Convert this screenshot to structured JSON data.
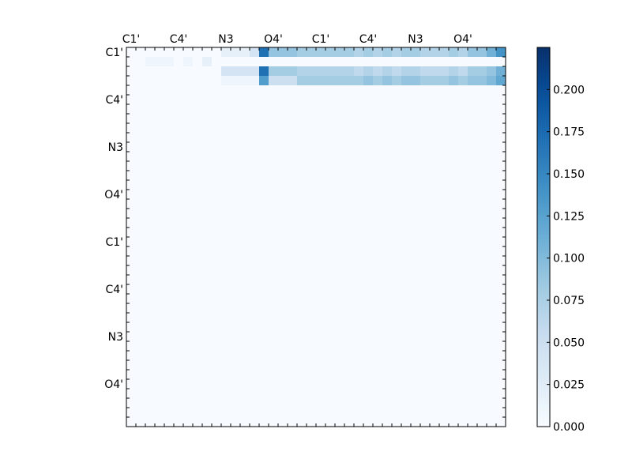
{
  "chart_data": {
    "type": "heatmap",
    "title": "",
    "xlabel": "",
    "ylabel": "",
    "n": 40,
    "tick_labels": [
      "C1'",
      "C4'",
      "N3",
      "O4'",
      "C1'",
      "C4'",
      "N3",
      "O4'"
    ],
    "tick_every": 5,
    "tick_first_index": 0,
    "ytick_label_offset": 0.5,
    "xaxis_labels_position": "top",
    "colorbar": {
      "colormap": "Blues",
      "range": [
        0.0,
        0.225
      ],
      "tick_values": [
        0.0,
        0.025,
        0.05,
        0.075,
        0.1,
        0.125,
        0.15,
        0.175,
        0.2
      ],
      "tick_labels": [
        "0.000",
        "0.025",
        "0.050",
        "0.075",
        "0.100",
        "0.125",
        "0.150",
        "0.175",
        "0.200"
      ],
      "placement": "right"
    },
    "values": [
      [
        0,
        0,
        0,
        0,
        0,
        0,
        0,
        0,
        0,
        0,
        0.02,
        0.02,
        0.02,
        0.04,
        0.17,
        0.09,
        0.09,
        0.09,
        0.08,
        0.08,
        0.08,
        0.08,
        0.08,
        0.08,
        0.07,
        0.08,
        0.07,
        0.08,
        0.07,
        0.08,
        0.08,
        0.07,
        0.07,
        0.07,
        0.08,
        0.07,
        0.09,
        0.09,
        0.11,
        0.14
      ],
      [
        0,
        0,
        0.01,
        0.01,
        0.01,
        0,
        0.01,
        0,
        0.02,
        0,
        0,
        0,
        0,
        0,
        0,
        0,
        0,
        0,
        0,
        0,
        0,
        0,
        0,
        0,
        0,
        0,
        0,
        0,
        0,
        0,
        0,
        0,
        0,
        0,
        0,
        0,
        0,
        0,
        0,
        0
      ],
      [
        0,
        0,
        0,
        0,
        0,
        0,
        0,
        0,
        0,
        0,
        0.04,
        0.04,
        0.04,
        0.04,
        0.17,
        0.08,
        0.08,
        0.08,
        0.07,
        0.07,
        0.07,
        0.07,
        0.07,
        0.07,
        0.06,
        0.07,
        0.06,
        0.07,
        0.06,
        0.07,
        0.07,
        0.06,
        0.06,
        0.06,
        0.07,
        0.06,
        0.08,
        0.08,
        0.09,
        0.11
      ],
      [
        0,
        0,
        0,
        0,
        0,
        0,
        0,
        0,
        0,
        0,
        0.01,
        0.01,
        0.01,
        0.01,
        0.13,
        0.05,
        0.05,
        0.05,
        0.08,
        0.08,
        0.08,
        0.08,
        0.08,
        0.08,
        0.08,
        0.09,
        0.08,
        0.09,
        0.08,
        0.09,
        0.09,
        0.08,
        0.08,
        0.08,
        0.09,
        0.08,
        0.09,
        0.09,
        0.1,
        0.12
      ],
      [
        0,
        0,
        0,
        0,
        0,
        0,
        0,
        0,
        0,
        0,
        0,
        0,
        0,
        0,
        0,
        0,
        0,
        0,
        0,
        0,
        0,
        0,
        0,
        0,
        0,
        0,
        0,
        0,
        0,
        0,
        0,
        0,
        0,
        0,
        0,
        0,
        0,
        0,
        0,
        0
      ],
      [
        0,
        0,
        0,
        0,
        0,
        0,
        0,
        0,
        0,
        0,
        0,
        0,
        0,
        0,
        0,
        0,
        0,
        0,
        0,
        0,
        0,
        0,
        0,
        0,
        0,
        0,
        0,
        0,
        0,
        0,
        0,
        0,
        0,
        0,
        0,
        0,
        0,
        0,
        0,
        0
      ],
      [
        0,
        0,
        0,
        0,
        0,
        0,
        0,
        0,
        0,
        0,
        0,
        0,
        0,
        0,
        0,
        0,
        0,
        0,
        0,
        0,
        0,
        0,
        0,
        0,
        0,
        0,
        0,
        0,
        0,
        0,
        0,
        0,
        0,
        0,
        0,
        0,
        0,
        0,
        0,
        0
      ],
      [
        0,
        0,
        0,
        0,
        0,
        0,
        0,
        0,
        0,
        0,
        0,
        0,
        0,
        0,
        0,
        0,
        0,
        0,
        0,
        0,
        0,
        0,
        0,
        0,
        0,
        0,
        0,
        0,
        0,
        0,
        0,
        0,
        0,
        0,
        0,
        0,
        0,
        0,
        0,
        0
      ],
      [
        0,
        0,
        0,
        0,
        0,
        0,
        0,
        0,
        0,
        0,
        0,
        0,
        0,
        0,
        0,
        0,
        0,
        0,
        0,
        0,
        0,
        0,
        0,
        0,
        0,
        0,
        0,
        0,
        0,
        0,
        0,
        0,
        0,
        0,
        0,
        0,
        0,
        0,
        0,
        0
      ],
      [
        0,
        0,
        0,
        0,
        0,
        0,
        0,
        0,
        0,
        0,
        0,
        0,
        0,
        0,
        0,
        0,
        0,
        0,
        0,
        0,
        0,
        0,
        0,
        0,
        0,
        0,
        0,
        0,
        0,
        0,
        0,
        0,
        0,
        0,
        0,
        0,
        0,
        0,
        0,
        0
      ],
      [
        0,
        0,
        0,
        0,
        0,
        0,
        0,
        0,
        0,
        0,
        0,
        0,
        0,
        0,
        0,
        0,
        0,
        0,
        0,
        0,
        0,
        0,
        0,
        0,
        0,
        0,
        0,
        0,
        0,
        0,
        0,
        0,
        0,
        0,
        0,
        0,
        0,
        0,
        0,
        0
      ],
      [
        0,
        0,
        0,
        0,
        0,
        0,
        0,
        0,
        0,
        0,
        0,
        0,
        0,
        0,
        0,
        0,
        0,
        0,
        0,
        0,
        0,
        0,
        0,
        0,
        0,
        0,
        0,
        0,
        0,
        0,
        0,
        0,
        0,
        0,
        0,
        0,
        0,
        0,
        0,
        0
      ],
      [
        0,
        0,
        0,
        0,
        0,
        0,
        0,
        0,
        0,
        0,
        0,
        0,
        0,
        0,
        0,
        0,
        0,
        0,
        0,
        0,
        0,
        0,
        0,
        0,
        0,
        0,
        0,
        0,
        0,
        0,
        0,
        0,
        0,
        0,
        0,
        0,
        0,
        0,
        0,
        0
      ],
      [
        0,
        0,
        0,
        0,
        0,
        0,
        0,
        0,
        0,
        0,
        0,
        0,
        0,
        0,
        0,
        0,
        0,
        0,
        0,
        0,
        0,
        0,
        0,
        0,
        0,
        0,
        0,
        0,
        0,
        0,
        0,
        0,
        0,
        0,
        0,
        0,
        0,
        0,
        0,
        0
      ],
      [
        0,
        0,
        0,
        0,
        0,
        0,
        0,
        0,
        0,
        0,
        0,
        0,
        0,
        0,
        0,
        0,
        0,
        0,
        0,
        0,
        0,
        0,
        0,
        0,
        0,
        0,
        0,
        0,
        0,
        0,
        0,
        0,
        0,
        0,
        0,
        0,
        0,
        0,
        0,
        0
      ],
      [
        0,
        0,
        0,
        0,
        0,
        0,
        0,
        0,
        0,
        0,
        0,
        0,
        0,
        0,
        0,
        0,
        0,
        0,
        0,
        0,
        0,
        0,
        0,
        0,
        0,
        0,
        0,
        0,
        0,
        0,
        0,
        0,
        0,
        0,
        0,
        0,
        0,
        0,
        0,
        0
      ],
      [
        0,
        0,
        0,
        0,
        0,
        0,
        0,
        0,
        0,
        0,
        0,
        0,
        0,
        0,
        0,
        0,
        0,
        0,
        0,
        0,
        0,
        0,
        0,
        0,
        0,
        0,
        0,
        0,
        0,
        0,
        0,
        0,
        0,
        0,
        0,
        0,
        0,
        0,
        0,
        0
      ],
      [
        0,
        0,
        0,
        0,
        0,
        0,
        0,
        0,
        0,
        0,
        0,
        0,
        0,
        0,
        0,
        0,
        0,
        0,
        0,
        0,
        0,
        0,
        0,
        0,
        0,
        0,
        0,
        0,
        0,
        0,
        0,
        0,
        0,
        0,
        0,
        0,
        0,
        0,
        0,
        0
      ],
      [
        0,
        0,
        0,
        0,
        0,
        0,
        0,
        0,
        0,
        0,
        0,
        0,
        0,
        0,
        0,
        0,
        0,
        0,
        0,
        0,
        0,
        0,
        0,
        0,
        0,
        0,
        0,
        0,
        0,
        0,
        0,
        0,
        0,
        0,
        0,
        0,
        0,
        0,
        0,
        0
      ],
      [
        0,
        0,
        0,
        0,
        0,
        0,
        0,
        0,
        0,
        0,
        0,
        0,
        0,
        0,
        0,
        0,
        0,
        0,
        0,
        0,
        0,
        0,
        0,
        0,
        0,
        0,
        0,
        0,
        0,
        0,
        0,
        0,
        0,
        0,
        0,
        0,
        0,
        0,
        0,
        0
      ],
      [
        0,
        0,
        0,
        0,
        0,
        0,
        0,
        0,
        0,
        0,
        0,
        0,
        0,
        0,
        0,
        0,
        0,
        0,
        0,
        0,
        0,
        0,
        0,
        0,
        0,
        0,
        0,
        0,
        0,
        0,
        0,
        0,
        0,
        0,
        0,
        0,
        0,
        0,
        0,
        0
      ],
      [
        0,
        0,
        0,
        0,
        0,
        0,
        0,
        0,
        0,
        0,
        0,
        0,
        0,
        0,
        0,
        0,
        0,
        0,
        0,
        0,
        0,
        0,
        0,
        0,
        0,
        0,
        0,
        0,
        0,
        0,
        0,
        0,
        0,
        0,
        0,
        0,
        0,
        0,
        0,
        0
      ],
      [
        0,
        0,
        0,
        0,
        0,
        0,
        0,
        0,
        0,
        0,
        0,
        0,
        0,
        0,
        0,
        0,
        0,
        0,
        0,
        0,
        0,
        0,
        0,
        0,
        0,
        0,
        0,
        0,
        0,
        0,
        0,
        0,
        0,
        0,
        0,
        0,
        0,
        0,
        0,
        0
      ],
      [
        0,
        0,
        0,
        0,
        0,
        0,
        0,
        0,
        0,
        0,
        0,
        0,
        0,
        0,
        0,
        0,
        0,
        0,
        0,
        0,
        0,
        0,
        0,
        0,
        0,
        0,
        0,
        0,
        0,
        0,
        0,
        0,
        0,
        0,
        0,
        0,
        0,
        0,
        0,
        0
      ],
      [
        0,
        0,
        0,
        0,
        0,
        0,
        0,
        0,
        0,
        0,
        0,
        0,
        0,
        0,
        0,
        0,
        0,
        0,
        0,
        0,
        0,
        0,
        0,
        0,
        0,
        0,
        0,
        0,
        0,
        0,
        0,
        0,
        0,
        0,
        0,
        0,
        0,
        0,
        0,
        0
      ],
      [
        0,
        0,
        0,
        0,
        0,
        0,
        0,
        0,
        0,
        0,
        0,
        0,
        0,
        0,
        0,
        0,
        0,
        0,
        0,
        0,
        0,
        0,
        0,
        0,
        0,
        0,
        0,
        0,
        0,
        0,
        0,
        0,
        0,
        0,
        0,
        0,
        0,
        0,
        0,
        0
      ],
      [
        0,
        0,
        0,
        0,
        0,
        0,
        0,
        0,
        0,
        0,
        0,
        0,
        0,
        0,
        0,
        0,
        0,
        0,
        0,
        0,
        0,
        0,
        0,
        0,
        0,
        0,
        0,
        0,
        0,
        0,
        0,
        0,
        0,
        0,
        0,
        0,
        0,
        0,
        0,
        0
      ],
      [
        0,
        0,
        0,
        0,
        0,
        0,
        0,
        0,
        0,
        0,
        0,
        0,
        0,
        0,
        0,
        0,
        0,
        0,
        0,
        0,
        0,
        0,
        0,
        0,
        0,
        0,
        0,
        0,
        0,
        0,
        0,
        0,
        0,
        0,
        0,
        0,
        0,
        0,
        0,
        0
      ],
      [
        0,
        0,
        0,
        0,
        0,
        0,
        0,
        0,
        0,
        0,
        0,
        0,
        0,
        0,
        0,
        0,
        0,
        0,
        0,
        0,
        0,
        0,
        0,
        0,
        0,
        0,
        0,
        0,
        0,
        0,
        0,
        0,
        0,
        0,
        0,
        0,
        0,
        0,
        0,
        0
      ],
      [
        0,
        0,
        0,
        0,
        0,
        0,
        0,
        0,
        0,
        0,
        0,
        0,
        0,
        0,
        0,
        0,
        0,
        0,
        0,
        0,
        0,
        0,
        0,
        0,
        0,
        0,
        0,
        0,
        0,
        0,
        0,
        0,
        0,
        0,
        0,
        0,
        0,
        0,
        0,
        0
      ],
      [
        0,
        0,
        0,
        0,
        0,
        0,
        0,
        0,
        0,
        0,
        0,
        0,
        0,
        0,
        0,
        0,
        0,
        0,
        0,
        0,
        0,
        0,
        0,
        0,
        0,
        0,
        0,
        0,
        0,
        0,
        0,
        0,
        0,
        0,
        0,
        0,
        0,
        0,
        0,
        0
      ],
      [
        0,
        0,
        0,
        0,
        0,
        0,
        0,
        0,
        0,
        0,
        0,
        0,
        0,
        0,
        0,
        0,
        0,
        0,
        0,
        0,
        0,
        0,
        0,
        0,
        0,
        0,
        0,
        0,
        0,
        0,
        0,
        0,
        0,
        0,
        0,
        0,
        0,
        0,
        0,
        0
      ],
      [
        0,
        0,
        0,
        0,
        0,
        0,
        0,
        0,
        0,
        0,
        0,
        0,
        0,
        0,
        0,
        0,
        0,
        0,
        0,
        0,
        0,
        0,
        0,
        0,
        0,
        0,
        0,
        0,
        0,
        0,
        0,
        0,
        0,
        0,
        0,
        0,
        0,
        0,
        0,
        0
      ],
      [
        0,
        0,
        0,
        0,
        0,
        0,
        0,
        0,
        0,
        0,
        0,
        0,
        0,
        0,
        0,
        0,
        0,
        0,
        0,
        0,
        0,
        0,
        0,
        0,
        0,
        0,
        0,
        0,
        0,
        0,
        0,
        0,
        0,
        0,
        0,
        0,
        0,
        0,
        0,
        0
      ],
      [
        0,
        0,
        0,
        0,
        0,
        0,
        0,
        0,
        0,
        0,
        0,
        0,
        0,
        0,
        0,
        0,
        0,
        0,
        0,
        0,
        0,
        0,
        0,
        0,
        0,
        0,
        0,
        0,
        0,
        0,
        0,
        0,
        0,
        0,
        0,
        0,
        0,
        0,
        0,
        0
      ],
      [
        0,
        0,
        0,
        0,
        0,
        0,
        0,
        0,
        0,
        0,
        0,
        0,
        0,
        0,
        0,
        0,
        0,
        0,
        0,
        0,
        0,
        0,
        0,
        0,
        0,
        0,
        0,
        0,
        0,
        0,
        0,
        0,
        0,
        0,
        0,
        0,
        0,
        0,
        0,
        0
      ],
      [
        0,
        0,
        0,
        0,
        0,
        0,
        0,
        0,
        0,
        0,
        0,
        0,
        0,
        0,
        0,
        0,
        0,
        0,
        0,
        0,
        0,
        0,
        0,
        0,
        0,
        0,
        0,
        0,
        0,
        0,
        0,
        0,
        0,
        0,
        0,
        0,
        0,
        0,
        0,
        0
      ],
      [
        0,
        0,
        0,
        0,
        0,
        0,
        0,
        0,
        0,
        0,
        0,
        0,
        0,
        0,
        0,
        0,
        0,
        0,
        0,
        0,
        0,
        0,
        0,
        0,
        0,
        0,
        0,
        0,
        0,
        0,
        0,
        0,
        0,
        0,
        0,
        0,
        0,
        0,
        0,
        0
      ],
      [
        0,
        0,
        0,
        0,
        0,
        0,
        0,
        0,
        0,
        0,
        0,
        0,
        0,
        0,
        0,
        0,
        0,
        0,
        0,
        0,
        0,
        0,
        0,
        0,
        0,
        0,
        0,
        0,
        0,
        0,
        0,
        0,
        0,
        0,
        0,
        0,
        0,
        0,
        0,
        0
      ],
      [
        0,
        0,
        0,
        0,
        0,
        0,
        0,
        0,
        0,
        0,
        0,
        0,
        0,
        0,
        0,
        0,
        0,
        0,
        0,
        0,
        0,
        0,
        0,
        0,
        0,
        0,
        0,
        0,
        0,
        0,
        0,
        0,
        0,
        0,
        0,
        0,
        0,
        0,
        0,
        0
      ]
    ]
  }
}
